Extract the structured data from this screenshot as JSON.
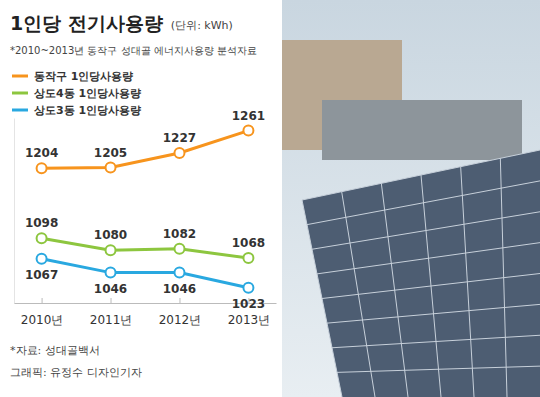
{
  "chart_data": {
    "type": "line",
    "title": "1인당 전기사용량",
    "subtitle": "*2010~2013년 동작구 성대골 에너지사용량 분석자료",
    "annotations": [
      "(단위: kWh)",
      "*자료: 성대골백서",
      "그래픽: 유정수 디자인기자"
    ],
    "categories": [
      "2010년",
      "2011년",
      "2012년",
      "2013년"
    ],
    "series": [
      {
        "name": "동작구 1인당사용량",
        "color": "#f7941d",
        "values": [
          1204,
          1205,
          1227,
          1261
        ]
      },
      {
        "name": "상도4동 1인당사용량",
        "color": "#8dc63f",
        "values": [
          1098,
          1080,
          1082,
          1068
        ]
      },
      {
        "name": "상도3동 1인당사용량",
        "color": "#29a8e0",
        "values": [
          1067,
          1046,
          1046,
          1023
        ]
      }
    ],
    "ylim": [
      1000,
      1280
    ],
    "yticks": [],
    "tick_labels": "x",
    "data_labels": true,
    "marker": "circle",
    "legend": "upper left",
    "grid": false
  }
}
